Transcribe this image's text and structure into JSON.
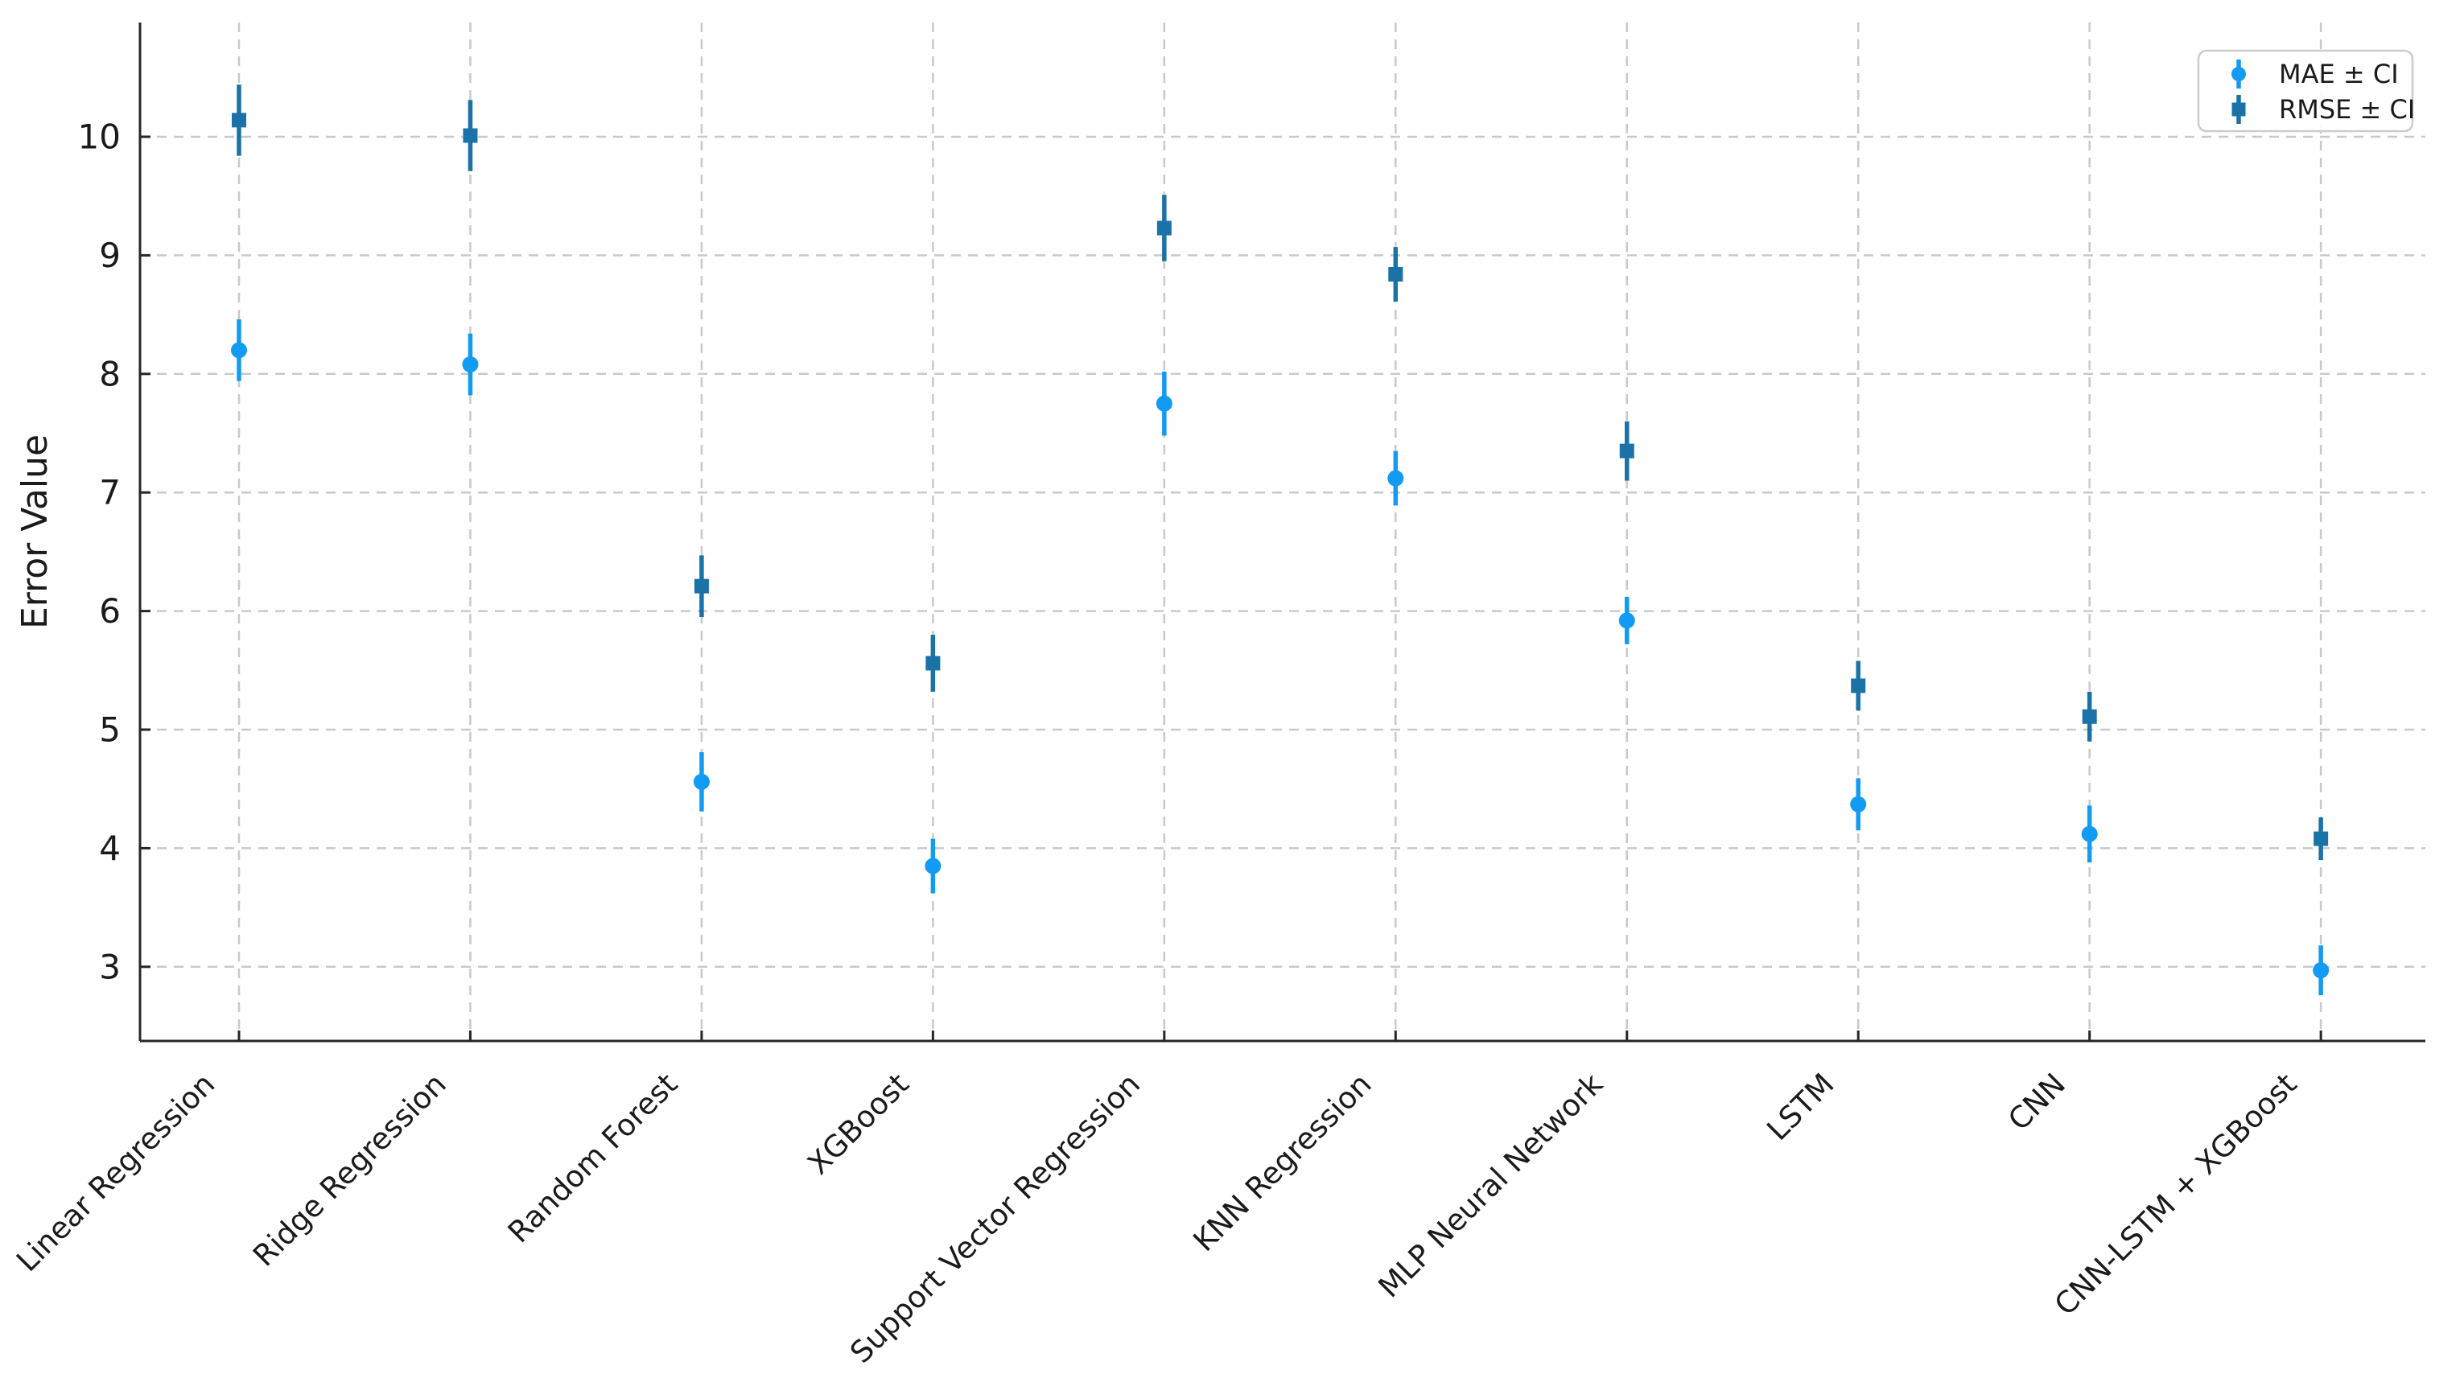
{
  "chart_data": {
    "type": "scatter",
    "title": "",
    "xlabel": "",
    "ylabel": "Error Value",
    "categories": [
      "Linear Regression",
      "Ridge Regression",
      "Random Forest",
      "XGBoost",
      "Support Vector Regression",
      "KNN Regression",
      "MLP Neural Network",
      "LSTM",
      "CNN",
      "CNN-LSTM + XGBoost"
    ],
    "yticks": [
      3,
      4,
      5,
      6,
      7,
      8,
      9,
      10
    ],
    "ylim": [
      2.4,
      10.95
    ],
    "grid": true,
    "grid_style": "dashed",
    "legend_position": "upper-right",
    "series": [
      {
        "name": "MAE ± CI",
        "marker": "circle",
        "color": "#129BF2",
        "values": [
          8.2,
          8.08,
          4.56,
          3.85,
          7.75,
          7.12,
          5.92,
          4.37,
          4.12,
          2.97
        ],
        "ci": [
          0.26,
          0.26,
          0.25,
          0.23,
          0.27,
          0.23,
          0.2,
          0.22,
          0.24,
          0.21
        ]
      },
      {
        "name": "RMSE ± CI",
        "marker": "square",
        "color": "#1B72A6",
        "values": [
          10.14,
          10.01,
          6.21,
          5.56,
          9.23,
          8.84,
          7.35,
          5.37,
          5.11,
          4.08
        ],
        "ci": [
          0.3,
          0.3,
          0.26,
          0.24,
          0.28,
          0.23,
          0.25,
          0.21,
          0.21,
          0.18
        ]
      }
    ],
    "axis_color": "#262626",
    "grid_color": "#c9c9c9",
    "tick_label_color": "#1a1a1a",
    "background": "#ffffff",
    "legend_border_color": "#cccccc"
  }
}
